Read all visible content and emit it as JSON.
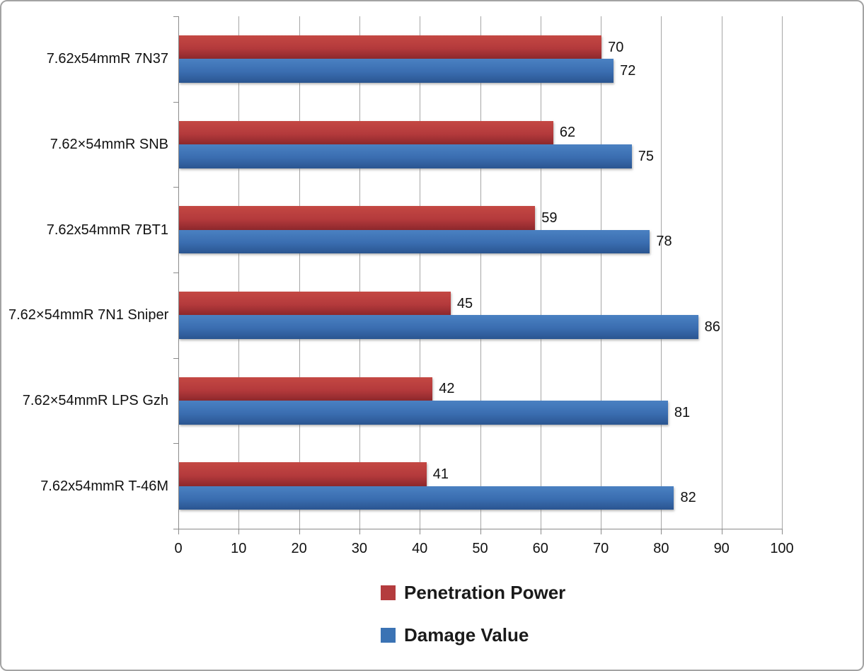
{
  "chart_data": {
    "type": "bar",
    "orientation": "horizontal",
    "title": "",
    "categories": [
      "7.62x54mmR 7N37",
      "7.62×54mmR SNB",
      "7.62x54mmR 7BT1",
      "7.62×54mmR 7N1 Sniper",
      "7.62×54mmR LPS Gzh",
      "7.62x54mmR T-46M"
    ],
    "series": [
      {
        "name": "Penetration Power",
        "color": "#b43c3e",
        "values": [
          70,
          62,
          59,
          45,
          42,
          41
        ]
      },
      {
        "name": "Damage Value",
        "color": "#3b73b4",
        "values": [
          72,
          75,
          78,
          86,
          81,
          82
        ]
      }
    ],
    "xlim": [
      0,
      100
    ],
    "xticks": [
      0,
      10,
      20,
      30,
      40,
      50,
      60,
      70,
      80,
      90,
      100
    ],
    "grid": "vertical",
    "data_labels": true,
    "legend_position": "bottom-left-of-center"
  },
  "colors": {
    "bar_red": "#b43c3e",
    "bar_blue": "#3b73b4",
    "gridline": "#a6a6a6",
    "axis": "#8a8a8a",
    "text": "#111111",
    "frame_border": "#a3a3a3"
  }
}
